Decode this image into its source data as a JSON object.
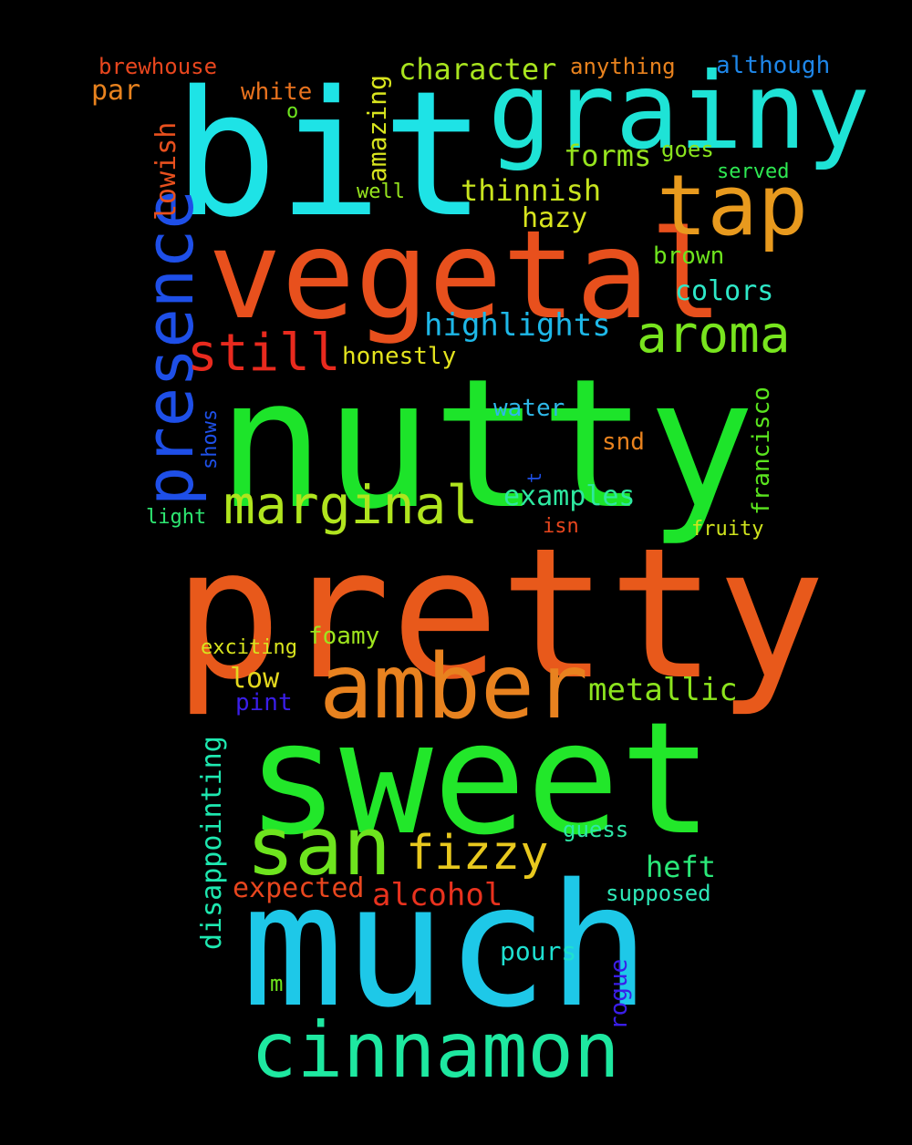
{
  "words": [
    {
      "text": "nutty",
      "color": "#1de42a"
    },
    {
      "text": "pretty",
      "color": "#e8591b"
    },
    {
      "text": "sweet",
      "color": "#22e72a"
    },
    {
      "text": "much",
      "color": "#1ec8e8"
    },
    {
      "text": "bit",
      "color": "#1ee3e6"
    },
    {
      "text": "vegetal",
      "color": "#e8501d"
    },
    {
      "text": "grainy",
      "color": "#1ee3d6"
    },
    {
      "text": "amber",
      "color": "#e8821f"
    },
    {
      "text": "cinnamon",
      "color": "#1ee8a0"
    },
    {
      "text": "tap",
      "color": "#e89a1e"
    },
    {
      "text": "san",
      "color": "#6ee41e"
    },
    {
      "text": "presence",
      "color": "#1e4fe8"
    },
    {
      "text": "marginal",
      "color": "#b0e41e"
    },
    {
      "text": "aroma",
      "color": "#78e41e"
    },
    {
      "text": "fizzy",
      "color": "#e8c81e"
    },
    {
      "text": "still",
      "color": "#e82a1e"
    },
    {
      "text": "highlights",
      "color": "#1eb8e8"
    },
    {
      "text": "metallic",
      "color": "#8ce41e"
    },
    {
      "text": "alcohol",
      "color": "#e8321e"
    },
    {
      "text": "character",
      "color": "#a8e41e"
    },
    {
      "text": "thinnish",
      "color": "#c8e41e"
    },
    {
      "text": "heft",
      "color": "#2ae878"
    },
    {
      "text": "expected",
      "color": "#e8461e"
    },
    {
      "text": "examples",
      "color": "#2ee8a0"
    },
    {
      "text": "colors",
      "color": "#2ee8c8"
    },
    {
      "text": "forms",
      "color": "#96e41e"
    },
    {
      "text": "hazy",
      "color": "#d8e41e"
    },
    {
      "text": "disappointing",
      "color": "#1ee8b0"
    },
    {
      "text": "lowish",
      "color": "#e8501e"
    },
    {
      "text": "amazing",
      "color": "#d8e41e"
    },
    {
      "text": "honestly",
      "color": "#e4e41e"
    },
    {
      "text": "brown",
      "color": "#6ee41e"
    },
    {
      "text": "pours",
      "color": "#1ee0d0"
    },
    {
      "text": "francisco",
      "color": "#5ae41e"
    },
    {
      "text": "white",
      "color": "#e8721e"
    },
    {
      "text": "par",
      "color": "#e8821e"
    },
    {
      "text": "foamy",
      "color": "#9ee41e"
    },
    {
      "text": "guess",
      "color": "#2ee8a8"
    },
    {
      "text": "supposed",
      "color": "#2ee8b8"
    },
    {
      "text": "low",
      "color": "#e4d81e"
    },
    {
      "text": "water",
      "color": "#2eb8e8"
    },
    {
      "text": "although",
      "color": "#1e86e8"
    },
    {
      "text": "snd",
      "color": "#e8821e"
    },
    {
      "text": "goes",
      "color": "#8ae41e"
    },
    {
      "text": "anything",
      "color": "#e8821e"
    },
    {
      "text": "brewhouse",
      "color": "#e8461e"
    },
    {
      "text": "rogue",
      "color": "#3a1ee8"
    },
    {
      "text": "pint",
      "color": "#3a1ee8"
    },
    {
      "text": "exciting",
      "color": "#d8e41e"
    },
    {
      "text": "fruity",
      "color": "#d0e41e"
    },
    {
      "text": "light",
      "color": "#2ee872"
    },
    {
      "text": "isn",
      "color": "#e8461e"
    },
    {
      "text": "served",
      "color": "#2ee852"
    },
    {
      "text": "well",
      "color": "#96e41e"
    },
    {
      "text": "shows",
      "color": "#1e50e8"
    },
    {
      "text": "m",
      "color": "#6ee41e"
    },
    {
      "text": "o",
      "color": "#6ee41e"
    },
    {
      "text": "t",
      "color": "#1e50e8"
    }
  ]
}
